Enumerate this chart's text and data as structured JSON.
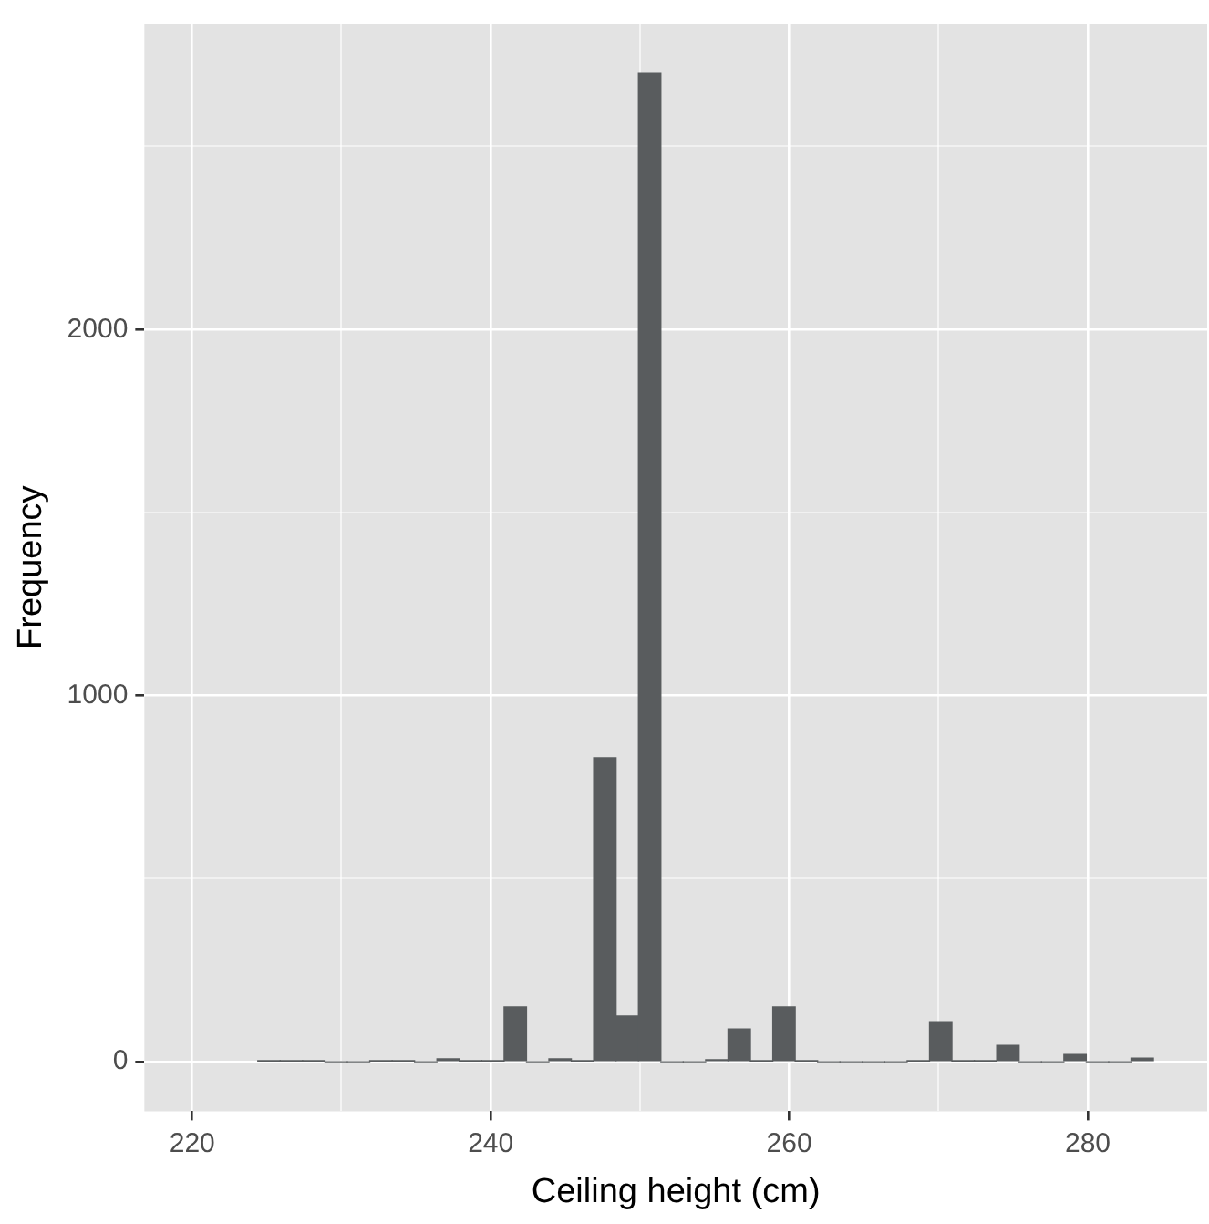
{
  "chart_data": {
    "type": "histogram",
    "xlabel": "Ceiling height (cm)",
    "ylabel": "Frequency",
    "color": "#595c5e",
    "bins": [
      224.4,
      225.9,
      227.4,
      228.9,
      230.4,
      231.9,
      233.4,
      234.9,
      236.4,
      237.9,
      239.4,
      240.9,
      242.4,
      243.9,
      245.4,
      246.9,
      248.4,
      249.9,
      251.4,
      252.9,
      254.4,
      255.9,
      257.4,
      258.9,
      260.4,
      261.9,
      263.4,
      264.9,
      266.4,
      267.9,
      269.4,
      270.9,
      272.4,
      273.9,
      275.4,
      276.9,
      278.4,
      279.9,
      281.4,
      282.9,
      284.4
    ],
    "values": [
      2,
      2,
      2,
      0,
      0,
      2,
      2,
      0,
      8,
      2,
      2,
      150,
      0,
      8,
      2,
      830,
      125,
      2700,
      0,
      0,
      6,
      90,
      2,
      150,
      2,
      0,
      0,
      0,
      0,
      2,
      110,
      2,
      2,
      45,
      0,
      0,
      20,
      0,
      0,
      10
    ],
    "xlim": [
      216.8,
      288
    ],
    "xticks": [
      220,
      {
        "value": 230,
        "label": null
      },
      240,
      {
        "value": 250,
        "label": null
      },
      260,
      {
        "value": 270,
        "label": null
      },
      280
    ],
    "ylim": [
      -135,
      2835
    ],
    "yticks": [
      0,
      {
        "value": 500,
        "label": null
      },
      1000,
      {
        "value": 1500,
        "label": null
      },
      2000,
      {
        "value": 2500,
        "label": null
      }
    ],
    "grid": true,
    "legend": false
  }
}
